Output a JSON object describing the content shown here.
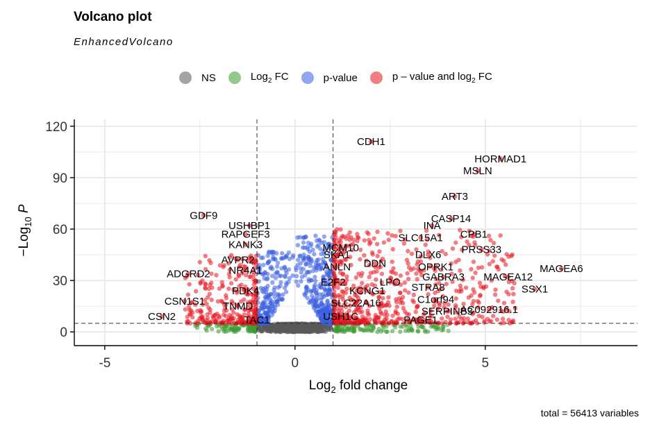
{
  "chart_data": {
    "type": "scatter",
    "title": "Volcano plot",
    "subtitle": "EnhancedVolcano",
    "xlabel_main": "Log",
    "xlabel_sub": "2",
    "xlabel_rest": " fold change",
    "ylabel_pre": "−Log",
    "ylabel_sub": "10",
    "ylabel_var": " P",
    "xlim": [
      -5.8,
      9.0
    ],
    "ylim": [
      -8,
      124
    ],
    "x_ticks": [
      -5,
      0,
      5
    ],
    "y_ticks": [
      0,
      30,
      60,
      90,
      120
    ],
    "grid": true,
    "legend_position": "top",
    "fc_cutoff": [
      -1,
      1
    ],
    "p_cutoff": 5,
    "caption": "total = 56413 variables",
    "legend": [
      {
        "key": "ns",
        "label": "NS",
        "color": "#595959"
      },
      {
        "key": "fc",
        "label_main": "Log",
        "label_sub": "2",
        "label_rest": " FC",
        "color": "#3a9b30"
      },
      {
        "key": "p",
        "label": "p-value",
        "color": "#3a5fe0"
      },
      {
        "key": "both",
        "label_main": "p – value and log",
        "label_sub": "2",
        "label_rest": " FC",
        "color": "#e8141f"
      }
    ],
    "colors": {
      "ns": "#595959",
      "fc": "#3a9b30",
      "p": "#3a5fe0",
      "both": "#e8141f"
    },
    "labeled_points": [
      {
        "label": "CDH1",
        "x": 2.0,
        "y": 111
      },
      {
        "label": "HORMAD1",
        "x": 5.4,
        "y": 101
      },
      {
        "label": "MSLN",
        "x": 4.8,
        "y": 94
      },
      {
        "label": "ART3",
        "x": 4.2,
        "y": 79
      },
      {
        "label": "CASP14",
        "x": 4.1,
        "y": 66
      },
      {
        "label": "INA",
        "x": 3.6,
        "y": 62
      },
      {
        "label": "CPB1",
        "x": 4.7,
        "y": 57
      },
      {
        "label": "SLC15A1",
        "x": 3.3,
        "y": 55
      },
      {
        "label": "PRSS33",
        "x": 4.9,
        "y": 48
      },
      {
        "label": "DLX6",
        "x": 3.5,
        "y": 45
      },
      {
        "label": "MAGEA6",
        "x": 7.0,
        "y": 37
      },
      {
        "label": "OPRK1",
        "x": 3.7,
        "y": 38
      },
      {
        "label": "GABRA3",
        "x": 3.9,
        "y": 32
      },
      {
        "label": "MAGEA12",
        "x": 5.6,
        "y": 32
      },
      {
        "label": "SSX1",
        "x": 6.3,
        "y": 25
      },
      {
        "label": "STRA8",
        "x": 3.5,
        "y": 26
      },
      {
        "label": "C1orf94",
        "x": 3.7,
        "y": 19
      },
      {
        "label": "AC092916.1",
        "x": 5.1,
        "y": 13
      },
      {
        "label": "SERPINB3",
        "x": 4.0,
        "y": 12
      },
      {
        "label": "PAGE1",
        "x": 3.3,
        "y": 7
      },
      {
        "label": "MCM10",
        "x": 1.2,
        "y": 49
      },
      {
        "label": "SKA1",
        "x": 1.1,
        "y": 45
      },
      {
        "label": "ANLN",
        "x": 1.1,
        "y": 38
      },
      {
        "label": "DDN",
        "x": 2.1,
        "y": 40
      },
      {
        "label": "E2F2",
        "x": 1.0,
        "y": 29
      },
      {
        "label": "LPO",
        "x": 2.5,
        "y": 29
      },
      {
        "label": "KCNG1",
        "x": 1.9,
        "y": 24
      },
      {
        "label": "SLC22A16",
        "x": 1.6,
        "y": 17
      },
      {
        "label": "USH1C",
        "x": 1.2,
        "y": 9
      },
      {
        "label": "GDF9",
        "x": -2.4,
        "y": 68
      },
      {
        "label": "USHBP1",
        "x": -1.2,
        "y": 62
      },
      {
        "label": "RAPGEF3",
        "x": -1.3,
        "y": 57
      },
      {
        "label": "KANK3",
        "x": -1.3,
        "y": 51
      },
      {
        "label": "AVPR2",
        "x": -1.5,
        "y": 42
      },
      {
        "label": "NR4A1",
        "x": -1.3,
        "y": 36
      },
      {
        "label": "ADGRD2",
        "x": -2.8,
        "y": 34
      },
      {
        "label": "PDK4",
        "x": -1.3,
        "y": 24
      },
      {
        "label": "CSN1S1",
        "x": -2.9,
        "y": 18
      },
      {
        "label": "TNMD",
        "x": -1.5,
        "y": 15
      },
      {
        "label": "CSN2",
        "x": -3.5,
        "y": 9
      },
      {
        "label": "TAC1",
        "x": -1.0,
        "y": 7
      }
    ]
  }
}
